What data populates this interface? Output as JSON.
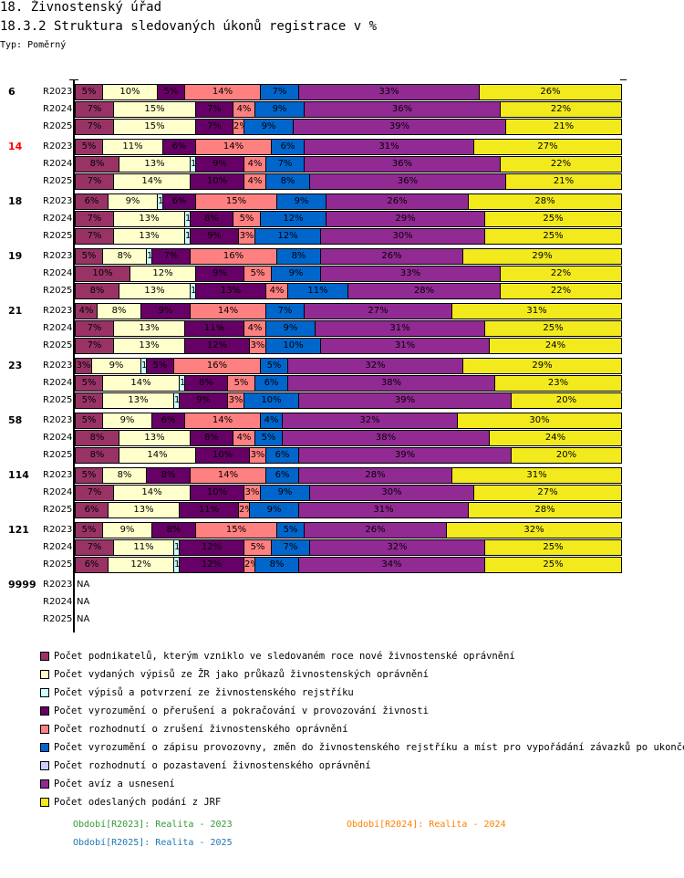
{
  "header": {
    "title": "18. Živnostenský úřad",
    "subtitle": "18.3.2 Struktura sledovaných úkonů registrace v %",
    "type_label": "Typ: Poměrný"
  },
  "chart_data": {
    "type": "bar",
    "orientation": "horizontal-stacked-100",
    "title": "18.3.2 Struktura sledovaných úkonů registrace v %",
    "xlabel": "",
    "ylabel": "",
    "xlim": [
      0,
      100
    ],
    "unit": "%",
    "series": [
      {
        "key": "podnikatele",
        "name": "Počet podnikatelů, kterým vzniklo ve sledovaném roce nové živnostenské oprávnění",
        "color": "#993366"
      },
      {
        "key": "vypisy_prukaz",
        "name": "Počet vydaných výpisů ze ŽR jako průkazů živnostenských oprávnění",
        "color": "#ffffcc"
      },
      {
        "key": "vypisy_potvrzeni",
        "name": "Počet výpisů a potvrzení ze živnostenského rejstříku",
        "color": "#ccffff"
      },
      {
        "key": "preruseni",
        "name": "Počet vyrozumění o přerušení a pokračování v provozování živnosti",
        "color": "#660066"
      },
      {
        "key": "zruseni",
        "name": "Počet rozhodnutí o zrušení živnostenského oprávnění",
        "color": "#ff8080"
      },
      {
        "key": "provozovna",
        "name": "Počet vyrozumění o zápisu provozovny, změn do živnostenského rejstříku a míst pro vypořádání závazků po ukončení pr",
        "color": "#0066cc"
      },
      {
        "key": "pozastaveni",
        "name": "Počet rozhodnutí o pozastavení živnostenského oprávnění",
        "color": "#ccccff"
      },
      {
        "key": "aviza",
        "name": "Počet avíz a usnesení",
        "color": "#922a93"
      },
      {
        "key": "jrf",
        "name": "Počet odeslaných podání z JRF",
        "color": "#f2ea1d"
      }
    ],
    "groups": [
      {
        "label": "6",
        "highlight": false,
        "rows": [
          {
            "period": "R2023",
            "values": [
              5,
              10,
              0,
              5,
              14,
              7,
              0,
              33,
              26
            ]
          },
          {
            "period": "R2024",
            "values": [
              7,
              15,
              0,
              7,
              4,
              9,
              0,
              36,
              22
            ]
          },
          {
            "period": "R2025",
            "values": [
              7,
              15,
              0,
              7,
              2,
              9,
              0,
              39,
              21
            ]
          }
        ]
      },
      {
        "label": "14",
        "highlight": true,
        "rows": [
          {
            "period": "R2023",
            "values": [
              5,
              11,
              0,
              6,
              14,
              6,
              0,
              31,
              27
            ]
          },
          {
            "period": "R2024",
            "values": [
              8,
              13,
              1,
              9,
              4,
              7,
              0,
              36,
              22
            ]
          },
          {
            "period": "R2025",
            "values": [
              7,
              14,
              0,
              10,
              4,
              8,
              0,
              36,
              21
            ]
          }
        ]
      },
      {
        "label": "18",
        "highlight": false,
        "rows": [
          {
            "period": "R2023",
            "values": [
              6,
              9,
              1,
              6,
              15,
              9,
              0,
              26,
              28
            ]
          },
          {
            "period": "R2024",
            "values": [
              7,
              13,
              1,
              8,
              5,
              12,
              0,
              29,
              25
            ]
          },
          {
            "period": "R2025",
            "values": [
              7,
              13,
              1,
              9,
              3,
              12,
              0,
              30,
              25
            ]
          }
        ]
      },
      {
        "label": "19",
        "highlight": false,
        "rows": [
          {
            "period": "R2023",
            "values": [
              5,
              8,
              1,
              7,
              16,
              8,
              0,
              26,
              29
            ]
          },
          {
            "period": "R2024",
            "values": [
              10,
              12,
              0,
              9,
              5,
              9,
              0,
              33,
              22
            ]
          },
          {
            "period": "R2025",
            "values": [
              8,
              13,
              1,
              13,
              4,
              11,
              0,
              28,
              22
            ]
          }
        ]
      },
      {
        "label": "21",
        "highlight": false,
        "rows": [
          {
            "period": "R2023",
            "values": [
              4,
              8,
              0,
              9,
              14,
              7,
              0,
              27,
              31
            ]
          },
          {
            "period": "R2024",
            "values": [
              7,
              13,
              0,
              11,
              4,
              9,
              0,
              31,
              25
            ]
          },
          {
            "period": "R2025",
            "values": [
              7,
              13,
              0,
              12,
              3,
              10,
              0,
              31,
              24
            ]
          }
        ]
      },
      {
        "label": "23",
        "highlight": false,
        "rows": [
          {
            "period": "R2023",
            "values": [
              3,
              9,
              1,
              5,
              16,
              5,
              0,
              32,
              29
            ]
          },
          {
            "period": "R2024",
            "values": [
              5,
              14,
              1,
              8,
              5,
              6,
              0,
              38,
              23
            ]
          },
          {
            "period": "R2025",
            "values": [
              5,
              13,
              1,
              9,
              3,
              10,
              0,
              39,
              20
            ]
          }
        ]
      },
      {
        "label": "58",
        "highlight": false,
        "rows": [
          {
            "period": "R2023",
            "values": [
              5,
              9,
              0,
              6,
              14,
              4,
              0,
              32,
              30
            ]
          },
          {
            "period": "R2024",
            "values": [
              8,
              13,
              0,
              8,
              4,
              5,
              0,
              38,
              24
            ]
          },
          {
            "period": "R2025",
            "values": [
              8,
              14,
              0,
              10,
              3,
              6,
              0,
              39,
              20
            ]
          }
        ]
      },
      {
        "label": "114",
        "highlight": false,
        "rows": [
          {
            "period": "R2023",
            "values": [
              5,
              8,
              0,
              8,
              14,
              6,
              0,
              28,
              31
            ]
          },
          {
            "period": "R2024",
            "values": [
              7,
              14,
              0,
              10,
              3,
              9,
              0,
              30,
              27
            ]
          },
          {
            "period": "R2025",
            "values": [
              6,
              13,
              0,
              11,
              2,
              9,
              0,
              31,
              28
            ]
          }
        ]
      },
      {
        "label": "121",
        "highlight": false,
        "rows": [
          {
            "period": "R2023",
            "values": [
              5,
              9,
              0,
              8,
              15,
              5,
              0,
              26,
              32
            ]
          },
          {
            "period": "R2024",
            "values": [
              7,
              11,
              1,
              12,
              5,
              7,
              0,
              32,
              25
            ]
          },
          {
            "period": "R2025",
            "values": [
              6,
              12,
              1,
              12,
              2,
              8,
              0,
              34,
              25
            ]
          }
        ]
      },
      {
        "label": "9999",
        "highlight": false,
        "rows": [
          {
            "period": "R2023",
            "values": null,
            "na_text": "NA"
          },
          {
            "period": "R2024",
            "values": null,
            "na_text": "NA"
          },
          {
            "period": "R2025",
            "values": null,
            "na_text": "NA"
          }
        ]
      }
    ],
    "periods": [
      {
        "text": "Období[R2023]: Realita - 2023",
        "color": "#339933"
      },
      {
        "text": "Období[R2024]: Realita - 2024",
        "color": "#ff8000"
      },
      {
        "text": "Období[R2025]: Realita - 2025",
        "color": "#1f77b4"
      }
    ],
    "legend_position": "bottom"
  }
}
